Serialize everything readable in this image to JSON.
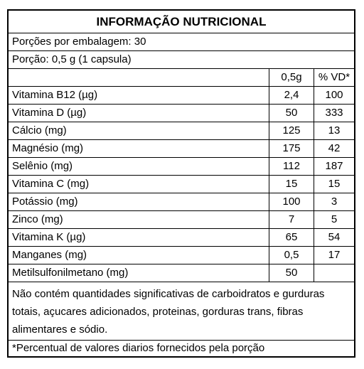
{
  "title": "INFORMAÇÃO NUTRICIONAL",
  "servings": "Porções por embalagem: 30",
  "portion": "Porção: 0,5 g (1 capsula)",
  "columns": {
    "qty": "0,5g",
    "vd": "% VD*"
  },
  "rows": [
    {
      "name": "Vitamina B12 (µg)",
      "qty": "2,4",
      "vd": "100"
    },
    {
      "name": "Vitamina D (µg)",
      "qty": "50",
      "vd": "333"
    },
    {
      "name": "Cálcio (mg)",
      "qty": "125",
      "vd": "13"
    },
    {
      "name": "Magnésio (mg)",
      "qty": "175",
      "vd": "42"
    },
    {
      "name": "Selênio (mg)",
      "qty": "112",
      "vd": "187"
    },
    {
      "name": "Vitamina C (mg)",
      "qty": "15",
      "vd": "15"
    },
    {
      "name": "Potássio (mg)",
      "qty": "100",
      "vd": "3"
    },
    {
      "name": "Zinco (mg)",
      "qty": "7",
      "vd": "5"
    },
    {
      "name": "Vitamina K (µg)",
      "qty": "65",
      "vd": "54"
    },
    {
      "name": "Manganes (mg)",
      "qty": "0,5",
      "vd": "17"
    },
    {
      "name": "Metilsulfonilmetano (mg)",
      "qty": "50",
      "vd": ""
    }
  ],
  "note": "Não contém quantidades significativas de carboidratos e gurduras totais, açucares adicionados, proteinas, gorduras trans, fibras alimentares e sódio.",
  "footnote": "*Percentual de valores diarios fornecidos pela porção"
}
